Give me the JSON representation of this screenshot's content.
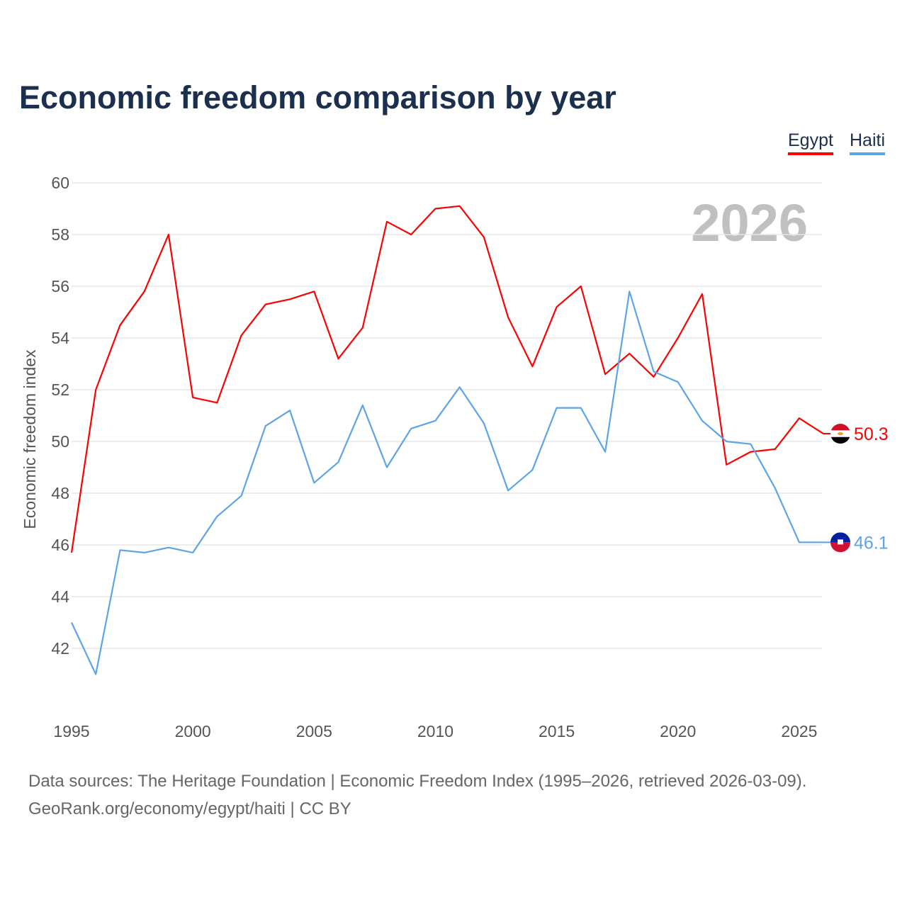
{
  "chart_data": {
    "type": "line",
    "title": "Economic freedom comparison by year",
    "xlabel": "",
    "ylabel": "Economic freedom index",
    "year_watermark": "2026",
    "x": [
      1995,
      1996,
      1997,
      1998,
      1999,
      2000,
      2001,
      2002,
      2003,
      2004,
      2005,
      2006,
      2007,
      2008,
      2009,
      2010,
      2011,
      2012,
      2013,
      2014,
      2015,
      2016,
      2017,
      2018,
      2019,
      2020,
      2021,
      2022,
      2023,
      2024,
      2025,
      2026
    ],
    "xlim": [
      1995,
      2026
    ],
    "ylim": [
      40,
      60
    ],
    "xticks": [
      "1995",
      "2000",
      "2005",
      "2010",
      "2015",
      "2020",
      "2025"
    ],
    "yticks": [
      "42",
      "44",
      "46",
      "48",
      "50",
      "52",
      "54",
      "56",
      "58",
      "60"
    ],
    "grid": true,
    "legend_position": "top-right",
    "series": [
      {
        "name": "Egypt",
        "color": "#ff0000",
        "end_label": "50.3",
        "values": [
          45.7,
          52.0,
          54.5,
          55.8,
          58.0,
          51.7,
          51.5,
          54.1,
          55.3,
          55.5,
          55.8,
          53.2,
          54.4,
          58.5,
          58.0,
          59.0,
          59.1,
          57.9,
          54.8,
          52.9,
          55.2,
          56.0,
          52.6,
          53.4,
          52.5,
          54.0,
          55.7,
          49.1,
          49.6,
          49.7,
          50.9,
          50.3
        ]
      },
      {
        "name": "Haiti",
        "color": "#5ba4e8",
        "end_label": "46.1",
        "values": [
          43.0,
          41.0,
          45.8,
          45.7,
          45.9,
          45.7,
          47.1,
          47.9,
          50.6,
          51.2,
          48.4,
          49.2,
          51.4,
          49.0,
          50.5,
          50.8,
          52.1,
          50.7,
          48.1,
          48.9,
          51.3,
          51.3,
          49.6,
          55.8,
          52.7,
          52.3,
          50.8,
          50.0,
          49.9,
          48.2,
          46.1,
          46.1
        ]
      }
    ]
  },
  "footer": {
    "line1": "Data sources: The Heritage Foundation | Economic Freedom Index (1995–2026, retrieved 2026-03-09).",
    "line2": "GeoRank.org/economy/egypt/haiti | CC BY"
  }
}
